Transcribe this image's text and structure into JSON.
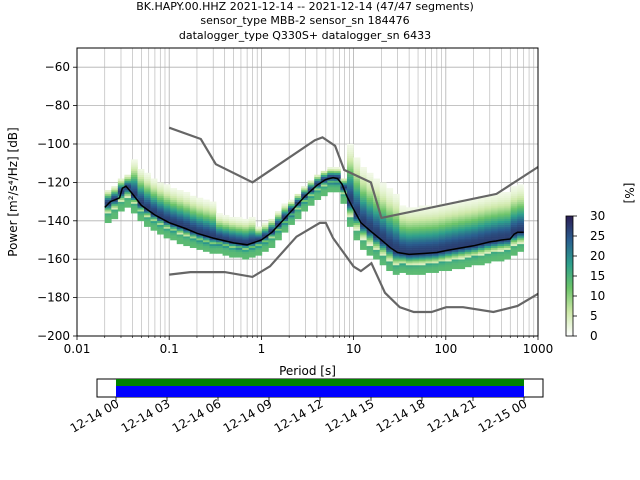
{
  "header": {
    "line1": "BK.HAPY.00.HHZ   2021-12-14 -- 2021-12-14  (47/47 segments)",
    "line2": "sensor_type MBB-2 sensor_sn 184476",
    "line3": "datalogger_type Q330S+ datalogger_sn 6433"
  },
  "chart_data": {
    "type": "heatmap",
    "xlabel": "Period [s]",
    "ylabel": "Power [m²/s⁴/Hz] [dB]",
    "x_scale": "log",
    "xlim": [
      0.01,
      1000
    ],
    "ylim": [
      -200,
      -50
    ],
    "x_ticks": [
      {
        "value": 0.01,
        "label": "0.01"
      },
      {
        "value": 0.1,
        "label": "0.1"
      },
      {
        "value": 1,
        "label": "1"
      },
      {
        "value": 10,
        "label": "10"
      },
      {
        "value": 100,
        "label": "100"
      },
      {
        "value": 1000,
        "label": "1000"
      }
    ],
    "y_ticks": [
      -60,
      -80,
      -100,
      -120,
      -140,
      -160,
      -180,
      -200
    ],
    "grid": true,
    "colorbar": {
      "label": "[%]",
      "min": 0,
      "max": 30,
      "ticks": [
        0,
        5,
        10,
        15,
        20,
        25,
        30
      ],
      "colors": [
        "#ffffff",
        "#cde8a8",
        "#6cc46a",
        "#2e9f8c",
        "#2a5e8f",
        "#2b1e54"
      ]
    },
    "noise_models": {
      "color": "#666666",
      "high": [
        [
          0.1,
          -91.5
        ],
        [
          0.22,
          -97.4
        ],
        [
          0.32,
          -110.5
        ],
        [
          0.8,
          -120.0
        ],
        [
          3.8,
          -98.0
        ],
        [
          4.6,
          -96.5
        ],
        [
          6.3,
          -101.0
        ],
        [
          7.9,
          -113.5
        ],
        [
          15.4,
          -120.0
        ],
        [
          20,
          -138.5
        ],
        [
          354.8,
          -126.0
        ],
        [
          1000,
          -112.0
        ]
      ],
      "low": [
        [
          0.1,
          -168.0
        ],
        [
          0.17,
          -166.7
        ],
        [
          0.4,
          -166.7
        ],
        [
          0.8,
          -169.2
        ],
        [
          1.24,
          -163.7
        ],
        [
          2.4,
          -148.3
        ],
        [
          4.3,
          -141.1
        ],
        [
          5.0,
          -141.1
        ],
        [
          6.0,
          -149.0
        ],
        [
          10.0,
          -163.8
        ],
        [
          12.0,
          -166.2
        ],
        [
          15.6,
          -162.1
        ],
        [
          21.9,
          -177.5
        ],
        [
          31.6,
          -185.0
        ],
        [
          45.0,
          -187.5
        ],
        [
          70.0,
          -187.5
        ],
        [
          101.0,
          -185.0
        ],
        [
          154.0,
          -185.0
        ],
        [
          328.0,
          -187.5
        ],
        [
          600.0,
          -184.4
        ],
        [
          1000,
          -178.0
        ]
      ]
    },
    "series": [
      {
        "color": "#000000",
        "x": [
          0.02,
          0.023,
          0.026,
          0.029,
          0.031,
          0.034,
          0.04,
          0.05,
          0.07,
          0.1,
          0.15,
          0.2,
          0.3,
          0.5,
          0.7,
          1.0,
          1.3,
          1.7,
          2.2,
          3.0,
          4.0,
          5.0,
          6.0,
          6.7,
          7.5,
          8.5,
          10.0,
          12.0,
          15.0,
          20.0,
          25.0,
          30.0,
          40.0,
          60.0,
          80.0,
          100.0,
          150.0,
          200.0,
          300.0,
          350.0,
          400.0,
          500.0,
          550.0,
          600.0,
          700.0
        ],
        "y": [
          -133.0,
          -130.0,
          -129.0,
          -128.0,
          -123.0,
          -122.0,
          -126.0,
          -132.0,
          -137.0,
          -141.0,
          -144.0,
          -146.5,
          -149.0,
          -151.5,
          -152.5,
          -150.0,
          -146.0,
          -140.0,
          -134.0,
          -127.0,
          -121.5,
          -118.5,
          -117.5,
          -118.0,
          -121.0,
          -127.5,
          -134.0,
          -141.0,
          -145.0,
          -150.0,
          -154.0,
          -156.5,
          -157.5,
          -157.0,
          -156.5,
          -155.5,
          -154.0,
          -153.0,
          -151.0,
          -150.5,
          -150.0,
          -149.5,
          -147.0,
          -146.0,
          -146.0
        ]
      }
    ]
  },
  "time_axis": {
    "labels": [
      "12-14 00",
      "12-14 03",
      "12-14 06",
      "12-14 09",
      "12-14 12",
      "12-14 15",
      "12-14 18",
      "12-14 21",
      "12-15 00"
    ],
    "segment_colors": [
      "#008000",
      "#0000ff"
    ]
  }
}
